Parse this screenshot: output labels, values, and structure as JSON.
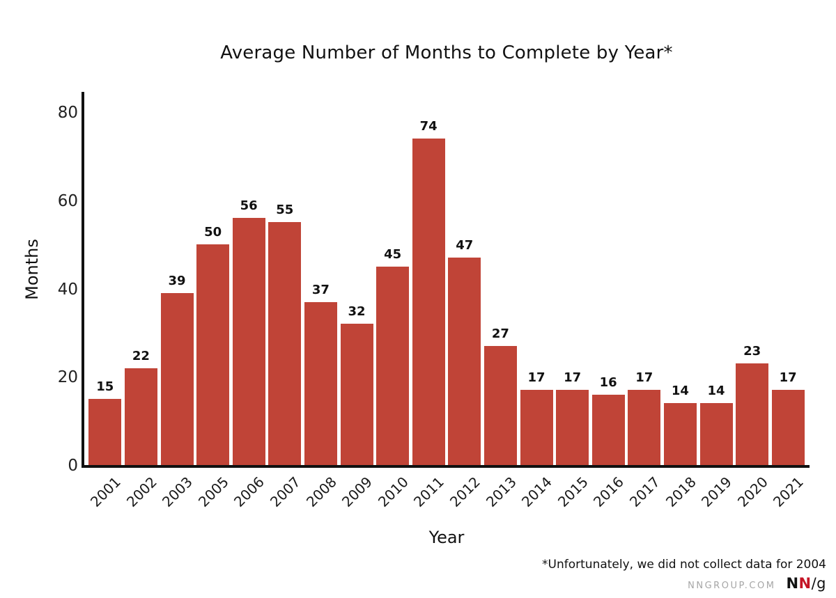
{
  "chart_data": {
    "type": "bar",
    "title": "Average Number of Months to Complete by Year*",
    "xlabel": "Year",
    "ylabel": "Months",
    "categories": [
      "2001",
      "2002",
      "2003",
      "2005",
      "2006",
      "2007",
      "2008",
      "2009",
      "2010",
      "2011",
      "2012",
      "2013",
      "2014",
      "2015",
      "2016",
      "2017",
      "2018",
      "2019",
      "2020",
      "2021"
    ],
    "values": [
      15,
      22,
      39,
      50,
      56,
      55,
      37,
      32,
      45,
      74,
      47,
      27,
      17,
      17,
      16,
      17,
      14,
      14,
      23,
      17
    ],
    "yticks": [
      0,
      20,
      40,
      60,
      80
    ],
    "ylim": [
      0,
      85
    ],
    "grid": false,
    "legend": false,
    "value_labels_shown": true,
    "bar_color": "#c04437",
    "axis_color": "#111111",
    "tick_label_color": "#222222"
  },
  "footnote": "*Unfortunately, we did not collect data for 2004",
  "branding": {
    "site": "NNGROUP.COM",
    "site_color": "#a6a6a6",
    "logo_n1": "N",
    "logo_n2": "N",
    "logo_suffix": "/g",
    "logo_red": "#c41425"
  }
}
